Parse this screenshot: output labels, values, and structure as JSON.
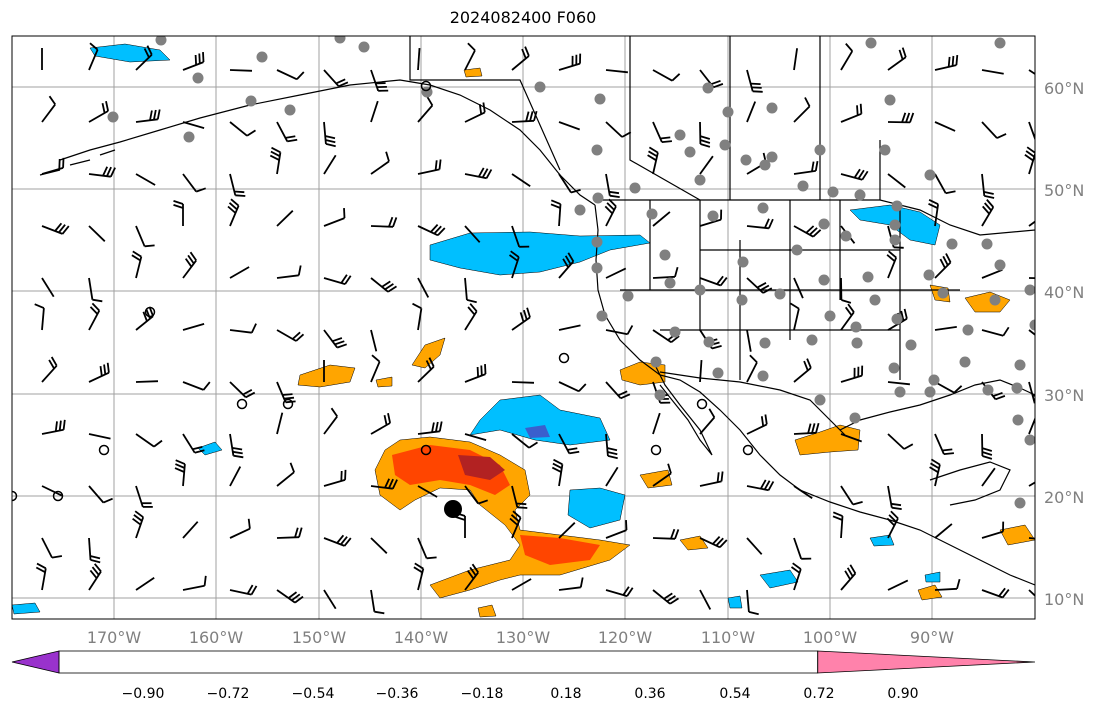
{
  "title": "2024082400 F060",
  "latitude_labels": [
    "60°N",
    "50°N",
    "40°N",
    "30°N",
    "20°N",
    "10°N"
  ],
  "longitude_labels": [
    "170°W",
    "160°W",
    "150°W",
    "140°W",
    "130°W",
    "120°W",
    "110°W",
    "100°W",
    "90°W"
  ],
  "colorbar": {
    "colors": [
      "#9932CC",
      "#000080",
      "#3A5FCD",
      "#00BFFF",
      "#B0E2FF",
      "#FFFFFF",
      "#FFEC8B",
      "#FFA500",
      "#FF4500",
      "#B22222",
      "#FF82AB"
    ],
    "tick_labels": [
      "−0.90",
      "−0.72",
      "−0.54",
      "−0.36",
      "−0.18",
      "0.18",
      "0.36",
      "0.54",
      "0.72",
      "0.90"
    ]
  },
  "colors": {
    "grid": "#A0A0A0",
    "coast": "#000000",
    "station_marker": "#808080",
    "label": "#808080"
  }
}
